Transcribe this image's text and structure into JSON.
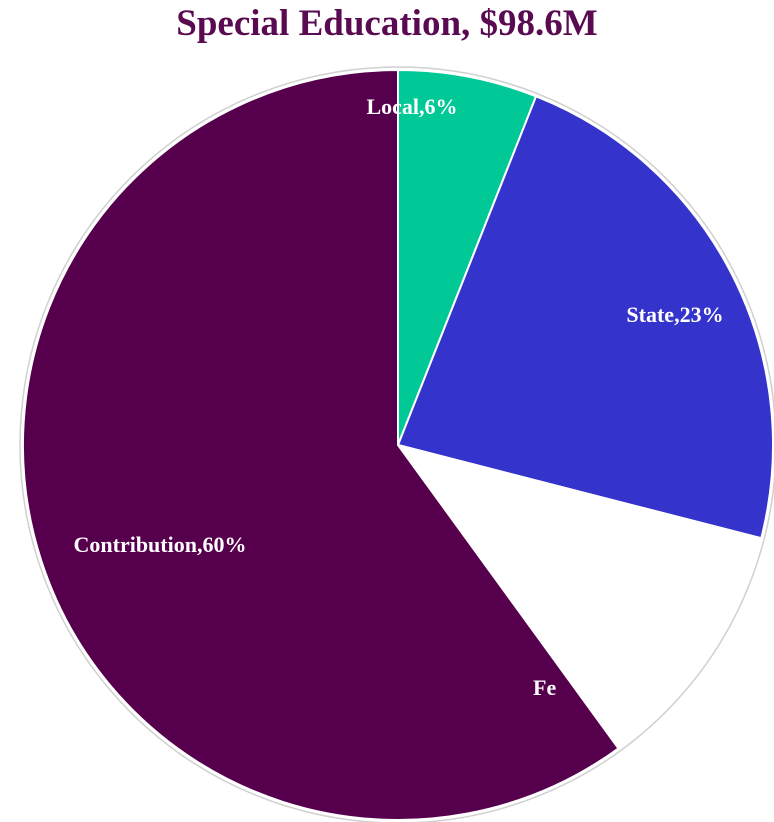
{
  "chart_data": {
    "type": "pie",
    "title": "Special Education, $98.6M",
    "slices": [
      {
        "name": "Local",
        "label": "Local,6%",
        "value": 6,
        "color": "#00c896"
      },
      {
        "name": "State",
        "label": "State,23%",
        "value": 23,
        "color": "#3434cc"
      },
      {
        "name": "Federal",
        "label": "Fe",
        "value": 11,
        "color": "#ffffff"
      },
      {
        "name": "Contribution",
        "label": "Contribution,60%",
        "value": 60,
        "color": "#56004d"
      }
    ]
  }
}
